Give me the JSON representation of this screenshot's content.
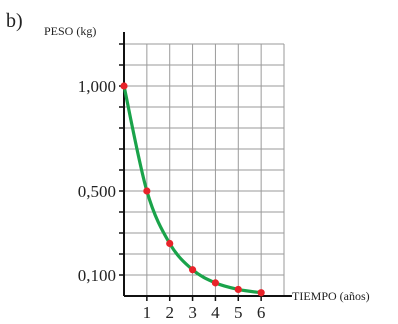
{
  "panel_label": "b)",
  "chart_data": {
    "type": "line",
    "title": "",
    "xlabel": "TIEMPO (años)",
    "ylabel": "PESO (kg)",
    "xlim": [
      0,
      7
    ],
    "ylim": [
      0,
      1.2
    ],
    "x_ticks": [
      1,
      2,
      3,
      4,
      5,
      6
    ],
    "x_tick_labels": [
      "1",
      "2",
      "3",
      "4",
      "5",
      "6"
    ],
    "y_labeled_ticks": [
      0.1,
      0.5,
      1.0
    ],
    "y_tick_labels": [
      "0,100",
      "0,500",
      "1,000"
    ],
    "grid": true,
    "series": [
      {
        "x": [
          0,
          1,
          2,
          3,
          4,
          5,
          6
        ],
        "y": [
          1.0,
          0.5,
          0.25,
          0.125,
          0.0625,
          0.03125,
          0.015625
        ]
      }
    ],
    "colors": {
      "line": "#1aa34a",
      "points": "#e8232a",
      "grid": "#9a9a9a",
      "axis": "#111111"
    }
  }
}
